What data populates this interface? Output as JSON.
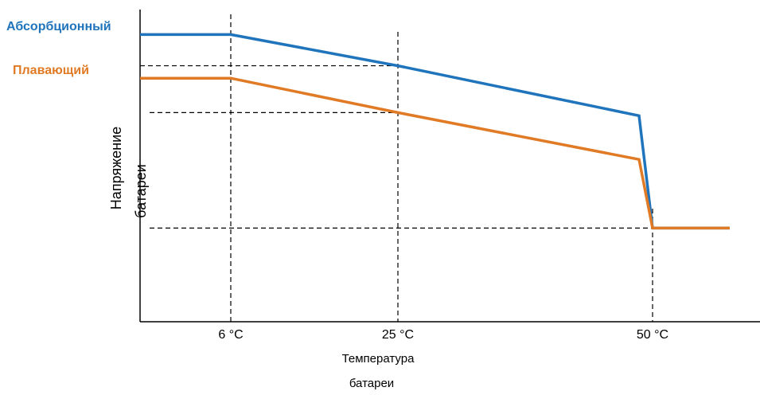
{
  "chart_data": {
    "type": "line",
    "title": "",
    "xlabel": "Температура батареи",
    "xlabel_lines": [
      "Температура",
      "батареи"
    ],
    "ylabel": "Напряжение батареи",
    "ylabel_lines": [
      "Напряжение",
      "батареи"
    ],
    "x_ticks": [
      {
        "value": 6,
        "label": "6 °C"
      },
      {
        "value": 25,
        "label": "25 °C"
      },
      {
        "value": 50,
        "label": "50 °C"
      }
    ],
    "series": [
      {
        "name": "Абсорбционный",
        "color": "#1f74bb",
        "points": [
          [
            -4,
            0.92
          ],
          [
            6,
            0.92
          ],
          [
            25,
            0.82
          ],
          [
            49,
            0.66
          ],
          [
            50,
            0.3
          ],
          [
            58,
            0.3
          ]
        ]
      },
      {
        "name": "Плавающий",
        "color": "#e07a25",
        "points": [
          [
            -4,
            0.78
          ],
          [
            6,
            0.78
          ],
          [
            25,
            0.67
          ],
          [
            49,
            0.52
          ],
          [
            50,
            0.3
          ],
          [
            58,
            0.3
          ]
        ]
      }
    ],
    "reference_lines": {
      "horizontal": [
        0.82,
        0.67,
        0.3
      ],
      "vertical": [
        6,
        25,
        50
      ]
    },
    "xlim": [
      -4,
      60
    ],
    "ylim": [
      0,
      1
    ],
    "grid": false,
    "legend": "left"
  }
}
